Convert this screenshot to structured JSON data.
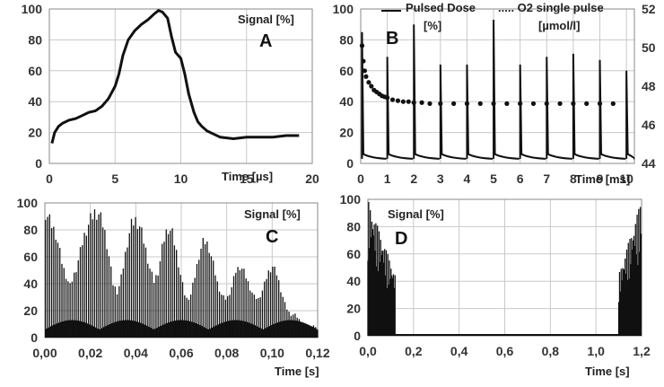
{
  "chart_data": [
    {
      "id": "A",
      "type": "line",
      "panel_label": "A",
      "ylabel": "Signal [%]",
      "xlabel": "Time [µs]",
      "xlim": [
        0,
        20
      ],
      "ylim": [
        0,
        100
      ],
      "x_ticks": [
        "0",
        "5",
        "10",
        "15",
        "20"
      ],
      "y_ticks": [
        "0",
        "20",
        "40",
        "60",
        "80",
        "100"
      ],
      "grid": true,
      "series": [
        {
          "x": [
            0.2,
            0.4,
            0.7,
            1,
            1.5,
            2,
            2.5,
            3,
            3.5,
            4,
            4.5,
            5,
            5.3,
            5.6,
            6,
            6.5,
            7,
            7.5,
            8,
            8.3,
            8.6,
            9,
            9.3,
            9.6,
            10,
            10.3,
            10.6,
            11,
            11.3,
            11.6,
            12,
            12.5,
            13,
            14,
            15,
            16,
            17,
            18,
            19
          ],
          "y": [
            13,
            20,
            24,
            26,
            28,
            29,
            31,
            33,
            34,
            37,
            42,
            50,
            58,
            70,
            80,
            86,
            90,
            93,
            97,
            99,
            98,
            94,
            82,
            72,
            68,
            58,
            45,
            33,
            27,
            24,
            21,
            19,
            17,
            16,
            17,
            17,
            17,
            18,
            18
          ],
          "color": "#111111"
        }
      ]
    },
    {
      "id": "B",
      "type": "line",
      "panel_label": "B",
      "xlabel": "Time [ms]",
      "xlim": [
        0,
        10.3
      ],
      "ylim": [
        0,
        100
      ],
      "y2lim": [
        44,
        52
      ],
      "x_ticks": [
        "0",
        "1",
        "2",
        "3",
        "4",
        "5",
        "6",
        "7",
        "8",
        "9",
        "10"
      ],
      "y_ticks": [
        "0",
        "20",
        "40",
        "60",
        "80",
        "100"
      ],
      "y2_ticks": [
        "44",
        "46",
        "48",
        "50",
        "52"
      ],
      "grid": true,
      "legend": [
        {
          "label": "Pulsed Dose",
          "sub": "[%]",
          "style": "solid"
        },
        {
          "label": "..... O2 single pulse",
          "sub": "[µmol/l]",
          "style": "dotted"
        }
      ],
      "series": [
        {
          "name": "Pulsed Dose",
          "axis": "left",
          "pulse_times": [
            0.05,
            1,
            2,
            3,
            4,
            5,
            6,
            7,
            8,
            9,
            10
          ],
          "pulse_peaks": [
            85,
            69,
            90,
            64,
            64,
            93,
            64,
            69,
            71,
            67,
            60
          ],
          "baseline": 3,
          "color": "#111111"
        },
        {
          "name": "O2 single pulse",
          "axis": "right",
          "x": [
            0.05,
            0.1,
            0.15,
            0.2,
            0.3,
            0.4,
            0.5,
            0.6,
            0.7,
            0.8,
            0.9,
            1.0,
            1.2,
            1.4,
            1.6,
            1.8,
            2.0,
            2.3,
            2.6,
            3.0,
            3.5,
            4.0,
            4.5,
            5.0,
            5.5,
            6.0,
            6.5,
            7.0,
            7.5,
            8.0,
            8.5,
            9.0,
            9.5
          ],
          "y": [
            50.1,
            49.3,
            48.8,
            48.5,
            48.2,
            48.0,
            47.8,
            47.7,
            47.6,
            47.5,
            47.45,
            47.4,
            47.3,
            47.25,
            47.2,
            47.2,
            47.15,
            47.15,
            47.1,
            47.1,
            47.1,
            47.1,
            47.1,
            47.1,
            47.1,
            47.1,
            47.1,
            47.1,
            47.1,
            47.1,
            47.1,
            47.1,
            47.1
          ],
          "color": "#111111"
        }
      ]
    },
    {
      "id": "C",
      "type": "bar",
      "panel_label": "C",
      "ylabel": "Signal [%]",
      "xlabel": "Time [s]",
      "xlim": [
        0,
        0.12
      ],
      "ylim": [
        0,
        100
      ],
      "x_ticks": [
        "0,00",
        "0,02",
        "0,04",
        "0,06",
        "0,08",
        "0,10",
        "0,12"
      ],
      "y_ticks": [
        "0",
        "20",
        "40",
        "60",
        "80",
        "100"
      ],
      "grid": true,
      "envelope_x": [
        0.0,
        0.002,
        0.005,
        0.008,
        0.011,
        0.014,
        0.017,
        0.02,
        0.022,
        0.024,
        0.026,
        0.028,
        0.03,
        0.032,
        0.034,
        0.036,
        0.038,
        0.04,
        0.042,
        0.044,
        0.046,
        0.048,
        0.05,
        0.052,
        0.054,
        0.056,
        0.058,
        0.06,
        0.062,
        0.064,
        0.066,
        0.068,
        0.07,
        0.072,
        0.074,
        0.076,
        0.078,
        0.08,
        0.082,
        0.084,
        0.086,
        0.088,
        0.09,
        0.092,
        0.094,
        0.096,
        0.098,
        0.1,
        0.102,
        0.104,
        0.106,
        0.108,
        0.11,
        0.112,
        0.114,
        0.116,
        0.118,
        0.12
      ],
      "envelope_y": [
        98,
        92,
        80,
        55,
        40,
        55,
        78,
        92,
        98,
        96,
        86,
        66,
        42,
        35,
        50,
        72,
        88,
        92,
        86,
        72,
        55,
        44,
        52,
        74,
        86,
        82,
        66,
        46,
        30,
        32,
        48,
        66,
        76,
        72,
        58,
        42,
        32,
        30,
        38,
        52,
        56,
        50,
        40,
        32,
        30,
        38,
        50,
        56,
        50,
        36,
        24,
        18,
        18,
        14,
        10,
        8,
        10,
        6
      ],
      "color": "#111111"
    },
    {
      "id": "D",
      "type": "bar",
      "panel_label": "D",
      "ylabel": "Signal [%]",
      "xlabel": "Time [s]",
      "xlim": [
        0,
        1.2
      ],
      "ylim": [
        0,
        100
      ],
      "x_ticks": [
        "0,0",
        "0,2",
        "0,4",
        "0,6",
        "0,8",
        "1,0",
        "1,2"
      ],
      "y_ticks": [
        "0",
        "20",
        "40",
        "60",
        "80",
        "100"
      ],
      "grid": true,
      "burst_ranges": [
        [
          0.0,
          0.12
        ],
        [
          1.1,
          1.2
        ]
      ],
      "color": "#111111"
    }
  ]
}
